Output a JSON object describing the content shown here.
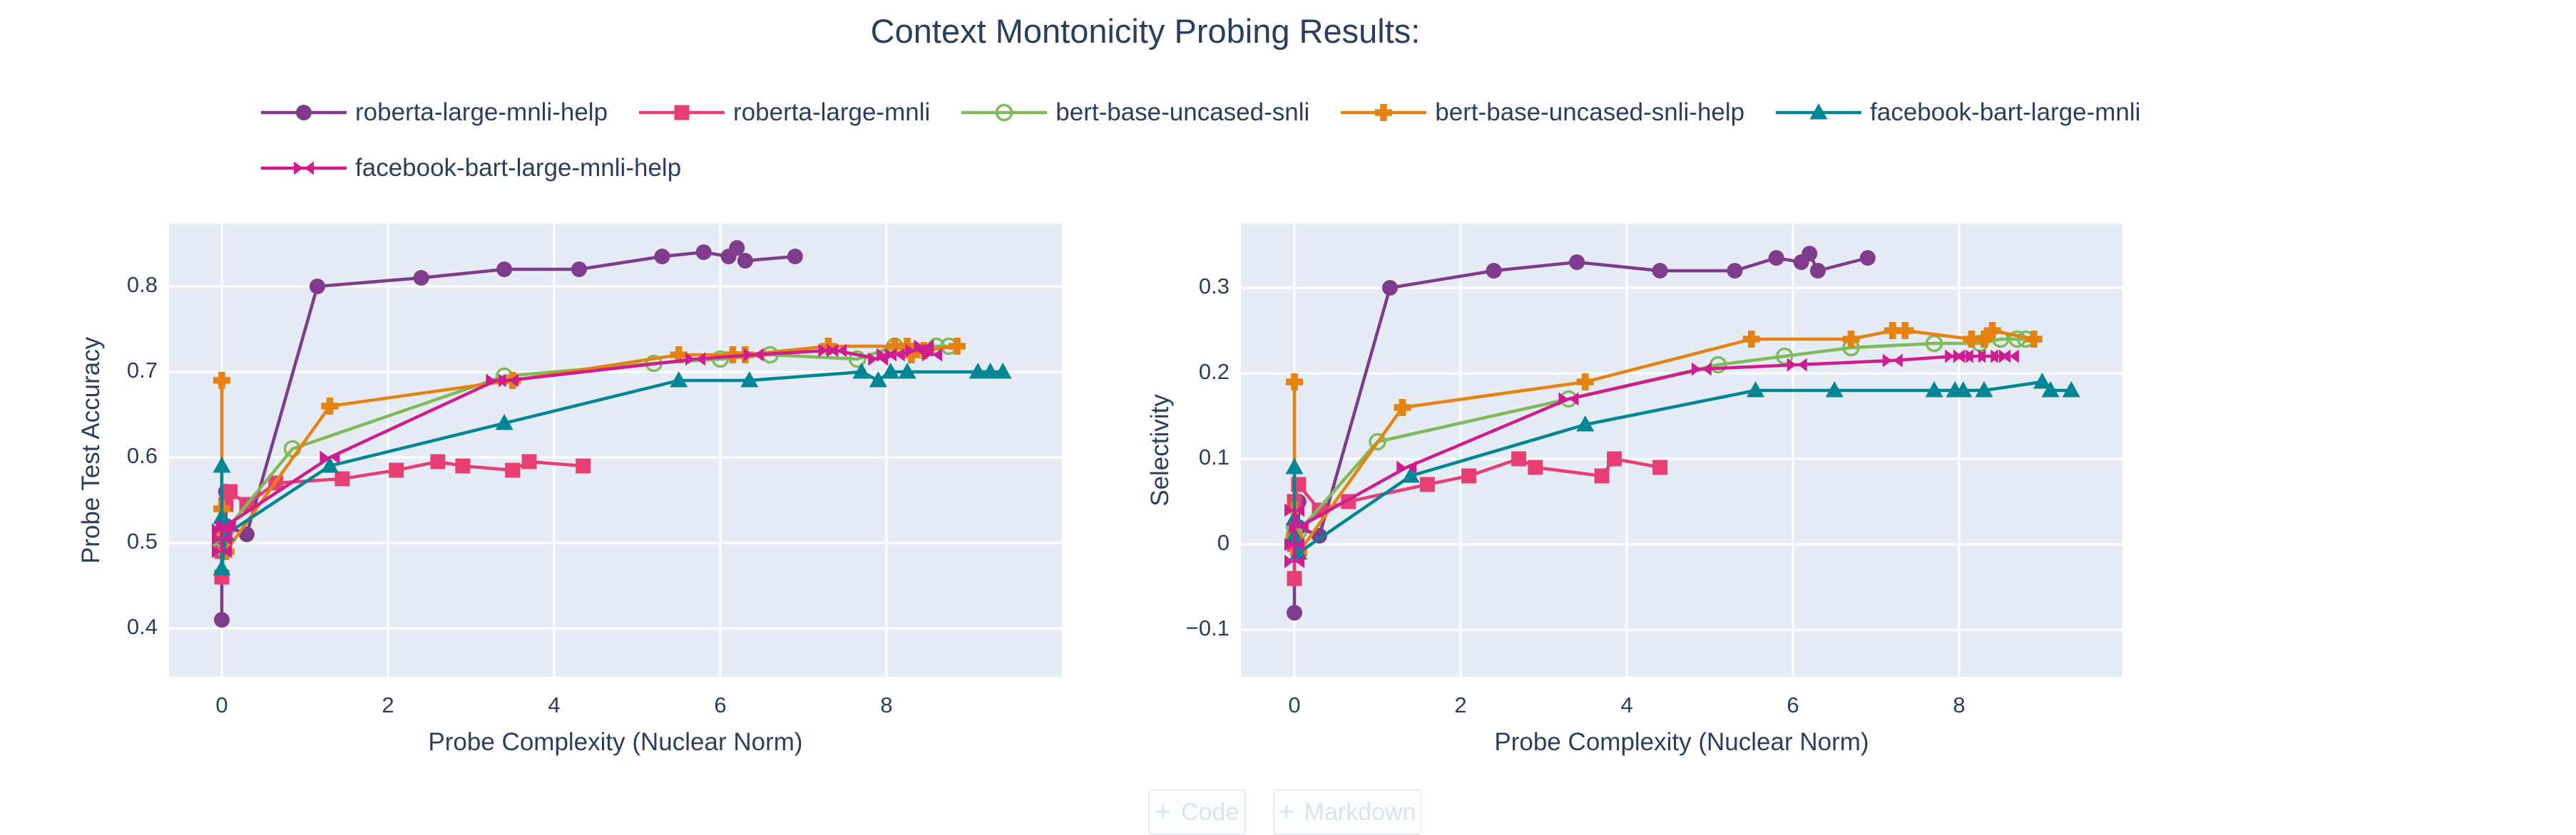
{
  "figure": {
    "title": "Context Montonicity Probing Results:",
    "background_color": "#ffffff",
    "plot_bg_color": "#E5ECF6",
    "grid_color": "#ffffff",
    "text_color": "#2a3f5f"
  },
  "chart_data": [
    {
      "type": "line",
      "xlabel": "Probe Complexity (Nuclear Norm)",
      "ylabel": "Probe Test Accuracy",
      "xlim": [
        -0.65,
        10.1
      ],
      "ylim": [
        0.35,
        0.87
      ],
      "grid": true,
      "xticks": [
        0,
        2,
        4,
        6,
        8
      ],
      "ytick_values": [
        0.4,
        0.5,
        0.6,
        0.7,
        0.8
      ],
      "ytick_labels": [
        "0.4",
        "0.5",
        "0.6",
        "0.7",
        "0.8"
      ],
      "legend_position": "top-horizontal",
      "series": [
        {
          "name": "roberta-large-mnli-help",
          "color": "#7F3C8D",
          "symbol": "circle",
          "points": [
            [
              0,
              0.41
            ],
            [
              0,
              0.5
            ],
            [
              0.05,
              0.56
            ],
            [
              0.05,
              0.52
            ],
            [
              0.3,
              0.51
            ],
            [
              1.15,
              0.8
            ],
            [
              2.4,
              0.81
            ],
            [
              3.4,
              0.82
            ],
            [
              4.3,
              0.82
            ],
            [
              5.3,
              0.835
            ],
            [
              5.8,
              0.84
            ],
            [
              6.1,
              0.835
            ],
            [
              6.2,
              0.845
            ],
            [
              6.3,
              0.83
            ],
            [
              6.9,
              0.835
            ]
          ]
        },
        {
          "name": "roberta-large-mnli",
          "color": "#E73F74",
          "symbol": "square",
          "points": [
            [
              0,
              0.46
            ],
            [
              0,
              0.49
            ],
            [
              0,
              0.51
            ],
            [
              0.05,
              0.545
            ],
            [
              0.1,
              0.56
            ],
            [
              0.3,
              0.545
            ],
            [
              0.65,
              0.57
            ],
            [
              1.45,
              0.575
            ],
            [
              2.1,
              0.585
            ],
            [
              2.6,
              0.595
            ],
            [
              2.9,
              0.59
            ],
            [
              3.5,
              0.585
            ],
            [
              3.7,
              0.595
            ],
            [
              4.35,
              0.59
            ]
          ]
        },
        {
          "name": "bert-base-uncased-snli",
          "color": "#80BA5A",
          "symbol": "circle-open",
          "points": [
            [
              0,
              0.495
            ],
            [
              0,
              0.505
            ],
            [
              0.05,
              0.515
            ],
            [
              0.85,
              0.61
            ],
            [
              3.4,
              0.695
            ],
            [
              5.2,
              0.71
            ],
            [
              6.0,
              0.715
            ],
            [
              6.6,
              0.72
            ],
            [
              7.65,
              0.715
            ],
            [
              8.1,
              0.73
            ],
            [
              8.6,
              0.73
            ],
            [
              8.75,
              0.73
            ]
          ]
        },
        {
          "name": "bert-base-uncased-snli-help",
          "color": "#E68310",
          "symbol": "cross",
          "points": [
            [
              0,
              0.69
            ],
            [
              0,
              0.54
            ],
            [
              0,
              0.51
            ],
            [
              0.05,
              0.49
            ],
            [
              1.3,
              0.66
            ],
            [
              3.5,
              0.69
            ],
            [
              5.5,
              0.72
            ],
            [
              6.15,
              0.72
            ],
            [
              6.3,
              0.72
            ],
            [
              7.3,
              0.73
            ],
            [
              8.1,
              0.73
            ],
            [
              8.25,
              0.73
            ],
            [
              8.3,
              0.72
            ],
            [
              8.45,
              0.725
            ],
            [
              8.85,
              0.73
            ]
          ]
        },
        {
          "name": "facebook-bart-large-mnli",
          "color": "#008695",
          "symbol": "triangle-up",
          "points": [
            [
              0,
              0.59
            ],
            [
              0,
              0.53
            ],
            [
              0,
              0.47
            ],
            [
              0.05,
              0.51
            ],
            [
              1.3,
              0.59
            ],
            [
              3.4,
              0.64
            ],
            [
              5.5,
              0.69
            ],
            [
              6.35,
              0.69
            ],
            [
              7.7,
              0.7
            ],
            [
              7.9,
              0.69
            ],
            [
              8.05,
              0.7
            ],
            [
              8.25,
              0.7
            ],
            [
              9.1,
              0.7
            ],
            [
              9.25,
              0.7
            ],
            [
              9.4,
              0.7
            ]
          ]
        },
        {
          "name": "facebook-bart-large-mnli-help",
          "color": "#CF1C90",
          "symbol": "bowtie",
          "points": [
            [
              0,
              0.49
            ],
            [
              0,
              0.505
            ],
            [
              0,
              0.515
            ],
            [
              0.05,
              0.52
            ],
            [
              1.3,
              0.6
            ],
            [
              3.3,
              0.69
            ],
            [
              3.45,
              0.69
            ],
            [
              5.7,
              0.715
            ],
            [
              6.4,
              0.72
            ],
            [
              7.3,
              0.725
            ],
            [
              7.4,
              0.725
            ],
            [
              7.9,
              0.715
            ],
            [
              8.0,
              0.72
            ],
            [
              8.1,
              0.72
            ],
            [
              8.35,
              0.725
            ],
            [
              8.45,
              0.73
            ],
            [
              8.55,
              0.72
            ]
          ]
        }
      ]
    },
    {
      "type": "line",
      "xlabel": "Probe Complexity (Nuclear Norm)",
      "ylabel": "Selectivity",
      "xlim": [
        -0.65,
        10.0
      ],
      "ylim": [
        -0.15,
        0.37
      ],
      "grid": true,
      "xticks": [
        0,
        2,
        4,
        6,
        8
      ],
      "ytick_values": [
        -0.1,
        0,
        0.1,
        0.2,
        0.3
      ],
      "ytick_labels": [
        "−0.1",
        "0",
        "0.1",
        "0.2",
        "0.3"
      ],
      "legend_position": "top-horizontal",
      "series": [
        {
          "name": "roberta-large-mnli-help",
          "color": "#7F3C8D",
          "symbol": "circle",
          "points": [
            [
              0,
              -0.08
            ],
            [
              0,
              0.01
            ],
            [
              0.05,
              0.05
            ],
            [
              0.05,
              0.02
            ],
            [
              0.3,
              0.01
            ],
            [
              1.15,
              0.3
            ],
            [
              2.4,
              0.32
            ],
            [
              3.4,
              0.33
            ],
            [
              4.4,
              0.32
            ],
            [
              5.3,
              0.32
            ],
            [
              5.8,
              0.335
            ],
            [
              6.1,
              0.33
            ],
            [
              6.2,
              0.34
            ],
            [
              6.3,
              0.32
            ],
            [
              6.9,
              0.335
            ]
          ]
        },
        {
          "name": "roberta-large-mnli",
          "color": "#E73F74",
          "symbol": "square",
          "points": [
            [
              0,
              -0.04
            ],
            [
              0,
              0.0
            ],
            [
              0,
              0.05
            ],
            [
              0.05,
              0.07
            ],
            [
              0.3,
              0.04
            ],
            [
              0.65,
              0.05
            ],
            [
              1.6,
              0.07
            ],
            [
              2.1,
              0.08
            ],
            [
              2.7,
              0.1
            ],
            [
              2.9,
              0.09
            ],
            [
              3.7,
              0.08
            ],
            [
              3.85,
              0.1
            ],
            [
              4.4,
              0.09
            ]
          ]
        },
        {
          "name": "bert-base-uncased-snli",
          "color": "#80BA5A",
          "symbol": "circle-open",
          "points": [
            [
              0,
              0.01
            ],
            [
              0,
              0.02
            ],
            [
              0.05,
              0.015
            ],
            [
              1.0,
              0.12
            ],
            [
              3.3,
              0.17
            ],
            [
              5.1,
              0.21
            ],
            [
              5.9,
              0.22
            ],
            [
              6.7,
              0.23
            ],
            [
              7.7,
              0.235
            ],
            [
              8.25,
              0.235
            ],
            [
              8.5,
              0.24
            ],
            [
              8.7,
              0.24
            ],
            [
              8.8,
              0.24
            ]
          ]
        },
        {
          "name": "bert-base-uncased-snli-help",
          "color": "#E68310",
          "symbol": "cross",
          "points": [
            [
              0,
              0.19
            ],
            [
              0,
              0.04
            ],
            [
              0,
              0.01
            ],
            [
              0.05,
              -0.01
            ],
            [
              1.3,
              0.16
            ],
            [
              3.5,
              0.19
            ],
            [
              5.5,
              0.24
            ],
            [
              6.7,
              0.24
            ],
            [
              7.2,
              0.25
            ],
            [
              7.35,
              0.25
            ],
            [
              8.15,
              0.24
            ],
            [
              8.3,
              0.24
            ],
            [
              8.4,
              0.25
            ],
            [
              8.9,
              0.24
            ]
          ]
        },
        {
          "name": "facebook-bart-large-mnli",
          "color": "#008695",
          "symbol": "triangle-up",
          "points": [
            [
              0,
              0.09
            ],
            [
              0,
              0.03
            ],
            [
              0,
              0.01
            ],
            [
              0.05,
              -0.01
            ],
            [
              1.4,
              0.08
            ],
            [
              3.5,
              0.14
            ],
            [
              5.55,
              0.18
            ],
            [
              6.5,
              0.18
            ],
            [
              7.7,
              0.18
            ],
            [
              7.95,
              0.18
            ],
            [
              8.05,
              0.18
            ],
            [
              8.3,
              0.18
            ],
            [
              9.0,
              0.19
            ],
            [
              9.1,
              0.18
            ],
            [
              9.35,
              0.18
            ]
          ]
        },
        {
          "name": "facebook-bart-large-mnli-help",
          "color": "#CF1C90",
          "symbol": "bowtie",
          "points": [
            [
              0,
              -0.02
            ],
            [
              0,
              0.0
            ],
            [
              0,
              0.04
            ],
            [
              0.05,
              0.02
            ],
            [
              1.35,
              0.09
            ],
            [
              3.3,
              0.17
            ],
            [
              4.9,
              0.205
            ],
            [
              6.05,
              0.21
            ],
            [
              7.2,
              0.215
            ],
            [
              7.95,
              0.22
            ],
            [
              8.05,
              0.22
            ],
            [
              8.2,
              0.22
            ],
            [
              8.35,
              0.22
            ],
            [
              8.5,
              0.22
            ],
            [
              8.6,
              0.22
            ]
          ]
        }
      ]
    }
  ],
  "notebook_toolbar": {
    "plus_icon": "+",
    "code_label": "Code",
    "markdown_label": "Markdown"
  }
}
